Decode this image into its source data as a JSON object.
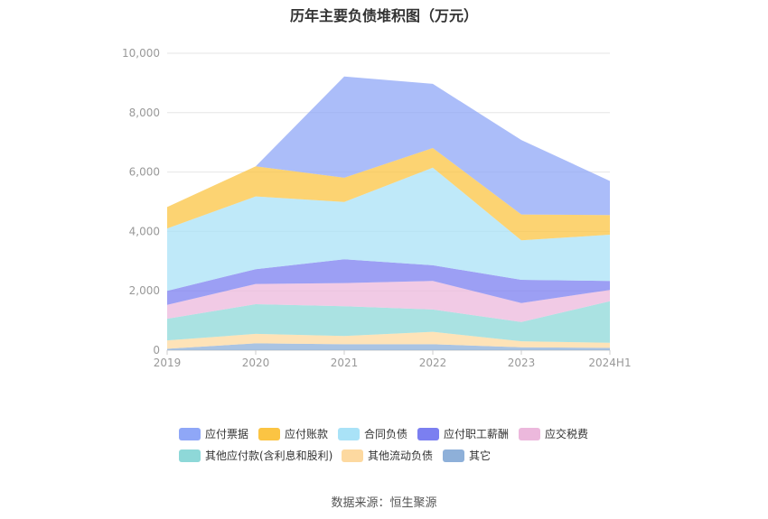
{
  "chart_data": {
    "type": "area",
    "title": "历年主要负债堆积图（万元）",
    "x": [
      "2019",
      "2020",
      "2021",
      "2022",
      "2023",
      "2024H1"
    ],
    "ylim": [
      0,
      10000
    ],
    "yticks": [
      "0",
      "2,000",
      "4,000",
      "6,000",
      "8,000",
      "10,000"
    ],
    "stacked": true,
    "grid": true,
    "legend_position": "bottom",
    "series": [
      {
        "name": "其它",
        "color": "#8eb0d9",
        "values": [
          50,
          230,
          200,
          200,
          100,
          80
        ]
      },
      {
        "name": "其他流动负债",
        "color": "#fdd9a0",
        "values": [
          280,
          320,
          280,
          420,
          200,
          170
        ]
      },
      {
        "name": "其他应付款(含利息和股利)",
        "color": "#8ed8d8",
        "values": [
          730,
          1000,
          1000,
          750,
          650,
          1400
        ]
      },
      {
        "name": "应交税费",
        "color": "#ecb8dc",
        "values": [
          470,
          680,
          780,
          960,
          640,
          380
        ]
      },
      {
        "name": "应付职工薪酬",
        "color": "#7b7ff0",
        "values": [
          470,
          500,
          800,
          530,
          780,
          300
        ]
      },
      {
        "name": "合同负债",
        "color": "#a9e2f7",
        "values": [
          2100,
          2450,
          1930,
          3290,
          1330,
          1560
        ]
      },
      {
        "name": "应付账款",
        "color": "#fbc443",
        "values": [
          720,
          1010,
          820,
          660,
          870,
          660
        ]
      },
      {
        "name": "应付票据",
        "color": "#8fa7f7",
        "values": [
          0,
          0,
          3410,
          2160,
          2510,
          1150
        ]
      }
    ]
  },
  "legend_items": [
    "应付票据",
    "应付账款",
    "合同负债",
    "应付职工薪酬",
    "应交税费",
    "其他应付款(含利息和股利)",
    "其他流动负债",
    "其它"
  ],
  "source_text": "数据来源：恒生聚源"
}
